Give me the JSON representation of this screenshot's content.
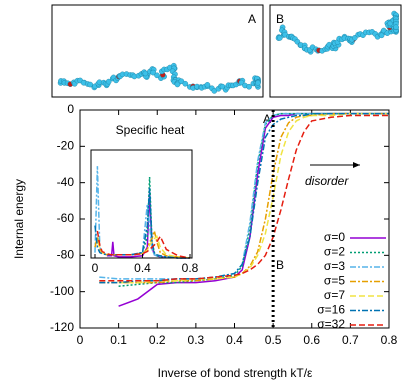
{
  "panels": [
    "A",
    "B"
  ],
  "chart_data": [
    {
      "type": "line",
      "x_label": "Inverse of bond strength kT/ε",
      "y_label": "Internal energy",
      "annotations": [
        "A",
        "B",
        "disorder"
      ],
      "marker_x": 0.5,
      "xlim": [
        0,
        0.8
      ],
      "xticks": [
        0,
        0.1,
        0.2,
        0.3,
        0.4,
        0.5,
        0.6,
        0.7,
        0.8
      ],
      "ylim": [
        -120,
        0
      ],
      "yticks": [
        0,
        -20,
        -40,
        -60,
        -80,
        -100,
        -120
      ],
      "legend": "lower right",
      "x": [
        0,
        0.05,
        0.1,
        0.15,
        0.2,
        0.25,
        0.3,
        0.35,
        0.4,
        0.42,
        0.44,
        0.46,
        0.48,
        0.5,
        0.52,
        0.54,
        0.56,
        0.58,
        0.6,
        0.65,
        0.7,
        0.75,
        0.8
      ],
      "series": [
        {
          "name": "σ=0",
          "color": "#9400d3",
          "dash": "solid",
          "values": [
            null,
            null,
            -108,
            -104,
            -96,
            -95,
            -95,
            -94,
            -92,
            -88,
            -70,
            -35,
            -10,
            -4,
            -3,
            -3,
            -2,
            -2,
            -2,
            -2,
            -2,
            -2,
            -2
          ]
        },
        {
          "name": "σ=2",
          "color": "#009e73",
          "dash": "dotted",
          "values": [
            null,
            null,
            -97,
            -96,
            -95,
            -95,
            -94,
            -93,
            -91,
            -86,
            -65,
            -30,
            -8,
            -3,
            -2,
            -2,
            -2,
            -2,
            -2,
            -2,
            -2,
            -2,
            -2
          ]
        },
        {
          "name": "σ=3",
          "color": "#56b4e9",
          "dash": "dashdot",
          "values": [
            null,
            -92,
            -93,
            -93,
            -93,
            -93,
            -93,
            -92,
            -90,
            -85,
            -62,
            -28,
            -7,
            -3,
            -2,
            -2,
            -2,
            -2,
            -2,
            -2,
            -2,
            -2,
            -2
          ]
        },
        {
          "name": "σ=5",
          "color": "#e69f00",
          "dash": "dashdot",
          "values": [
            null,
            -95,
            -95,
            -95,
            -95,
            -94,
            -94,
            -93,
            -92,
            -90,
            -86,
            -78,
            -60,
            -35,
            -15,
            -7,
            -4,
            -3,
            -3,
            -2,
            -2,
            -2,
            -2
          ]
        },
        {
          "name": "σ=7",
          "color": "#f0e442",
          "dash": "dashed",
          "values": [
            null,
            null,
            -95,
            -95,
            -94,
            -94,
            -93,
            -93,
            -92,
            -90,
            -87,
            -80,
            -68,
            -48,
            -25,
            -12,
            -6,
            -4,
            -3,
            -3,
            -2,
            -2,
            -2
          ]
        },
        {
          "name": "σ=16",
          "color": "#0072b2",
          "dash": "dashdot",
          "values": [
            null,
            -95,
            -95,
            -94,
            -94,
            -93,
            -93,
            -92,
            -90,
            -85,
            -70,
            -40,
            -15,
            -8,
            -5,
            -4,
            -3,
            -3,
            -2,
            -2,
            -2,
            -2,
            -2
          ]
        },
        {
          "name": "σ=32",
          "color": "#e51e10",
          "dash": "dashed",
          "values": [
            null,
            -94,
            -94,
            -94,
            -94,
            -93,
            -93,
            -92,
            -91,
            -90,
            -88,
            -85,
            -80,
            -70,
            -55,
            -38,
            -22,
            -12,
            -6,
            -4,
            -3,
            -3,
            -3
          ]
        }
      ]
    },
    {
      "type": "line",
      "title": "Specific heat",
      "xlim": [
        0,
        0.8
      ],
      "xticks": [
        0,
        0.4,
        0.8
      ],
      "ylim": [
        0,
        100
      ],
      "x": [
        0,
        0.02,
        0.04,
        0.06,
        0.1,
        0.14,
        0.15,
        0.16,
        0.2,
        0.3,
        0.4,
        0.44,
        0.46,
        0.48,
        0.5,
        0.52,
        0.55,
        0.6,
        0.7,
        0.8
      ],
      "series": [
        {
          "color": "#9400d3",
          "dash": "solid",
          "values": [
            null,
            null,
            null,
            null,
            2,
            2,
            15,
            2,
            1,
            1,
            2,
            10,
            60,
            10,
            3,
            2,
            1,
            1,
            0,
            0
          ]
        },
        {
          "color": "#009e73",
          "dash": "dotted",
          "values": [
            null,
            null,
            null,
            null,
            3,
            3,
            3,
            3,
            3,
            3,
            5,
            20,
            75,
            15,
            4,
            2,
            1,
            1,
            0,
            0
          ]
        },
        {
          "color": "#56b4e9",
          "dash": "dashdot",
          "values": [
            5,
            85,
            10,
            5,
            3,
            3,
            3,
            3,
            3,
            3,
            5,
            50,
            30,
            8,
            3,
            2,
            1,
            1,
            0,
            0
          ]
        },
        {
          "color": "#e69f00",
          "dash": "dashdot",
          "values": [
            10,
            20,
            8,
            5,
            3,
            3,
            3,
            3,
            3,
            3,
            4,
            8,
            15,
            18,
            25,
            15,
            5,
            2,
            1,
            0
          ]
        },
        {
          "color": "#f0e442",
          "dash": "dashed",
          "values": [
            null,
            15,
            10,
            5,
            3,
            3,
            3,
            3,
            3,
            3,
            4,
            7,
            12,
            15,
            18,
            20,
            10,
            3,
            1,
            0
          ]
        },
        {
          "color": "#0072b2",
          "dash": "dashdot",
          "values": [
            30,
            10,
            5,
            4,
            3,
            3,
            3,
            3,
            3,
            3,
            5,
            30,
            65,
            15,
            5,
            3,
            2,
            1,
            0,
            0
          ]
        },
        {
          "color": "#e51e10",
          "dash": "dashed",
          "values": [
            null,
            25,
            12,
            6,
            4,
            3,
            3,
            3,
            3,
            3,
            4,
            6,
            8,
            10,
            12,
            15,
            20,
            8,
            2,
            0
          ]
        }
      ]
    }
  ]
}
